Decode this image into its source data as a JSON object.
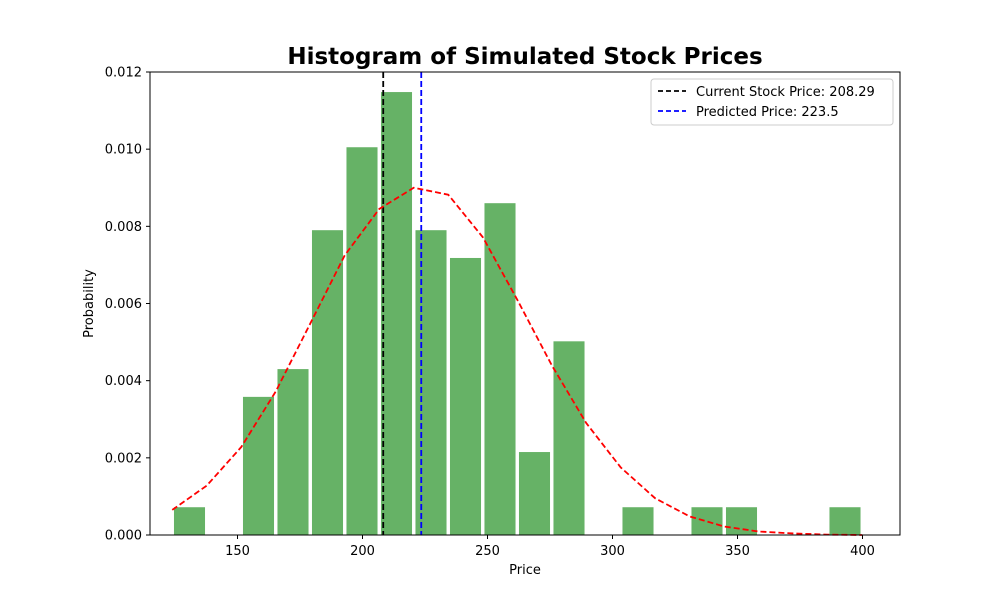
{
  "chart_data": {
    "type": "bar",
    "title": "Histogram of Simulated Stock Prices",
    "xlabel": "Price",
    "ylabel": "Probability",
    "xlim": [
      115,
      415
    ],
    "ylim": [
      0,
      0.012
    ],
    "xticks": [
      150,
      200,
      250,
      300,
      350,
      400
    ],
    "yticks": [
      0.0,
      0.002,
      0.004,
      0.006,
      0.008,
      0.01,
      0.012
    ],
    "xtick_labels": [
      "150",
      "200",
      "250",
      "300",
      "350",
      "400"
    ],
    "ytick_labels": [
      "0.000",
      "0.002",
      "0.004",
      "0.006",
      "0.008",
      "0.010",
      "0.012"
    ],
    "grid": false,
    "legend_position": "top-right",
    "bars": [
      {
        "x0": 123.9,
        "x1": 137.7,
        "value": 0.00072
      },
      {
        "x0": 137.7,
        "x1": 151.5,
        "value": 0.0
      },
      {
        "x0": 151.5,
        "x1": 165.3,
        "value": 0.00358
      },
      {
        "x0": 165.3,
        "x1": 179.1,
        "value": 0.0043
      },
      {
        "x0": 179.1,
        "x1": 192.9,
        "value": 0.0079
      },
      {
        "x0": 192.9,
        "x1": 206.7,
        "value": 0.01005
      },
      {
        "x0": 206.7,
        "x1": 220.5,
        "value": 0.01148
      },
      {
        "x0": 220.5,
        "x1": 234.3,
        "value": 0.0079
      },
      {
        "x0": 234.3,
        "x1": 248.1,
        "value": 0.00718
      },
      {
        "x0": 248.1,
        "x1": 261.9,
        "value": 0.0086
      },
      {
        "x0": 261.9,
        "x1": 275.7,
        "value": 0.00215
      },
      {
        "x0": 275.7,
        "x1": 289.5,
        "value": 0.00502
      },
      {
        "x0": 289.5,
        "x1": 303.3,
        "value": 0.0
      },
      {
        "x0": 303.3,
        "x1": 317.1,
        "value": 0.00072
      },
      {
        "x0": 317.1,
        "x1": 330.9,
        "value": 0.0
      },
      {
        "x0": 330.9,
        "x1": 344.7,
        "value": 0.00072
      },
      {
        "x0": 344.7,
        "x1": 358.5,
        "value": 0.00072
      },
      {
        "x0": 358.5,
        "x1": 372.3,
        "value": 0.0
      },
      {
        "x0": 372.3,
        "x1": 386.1,
        "value": 0.0
      },
      {
        "x0": 386.1,
        "x1": 399.9,
        "value": 0.00072
      }
    ],
    "bar_color": "#66b266",
    "density_curve": {
      "color": "#ff0000",
      "x": [
        123.9,
        137.7,
        151.5,
        165.3,
        179.1,
        192.9,
        206.7,
        220.5,
        234.3,
        248.1,
        261.9,
        275.7,
        289.5,
        303.3,
        317.1,
        330.9,
        344.7,
        358.5,
        372.3,
        386.1,
        399.9
      ],
      "y": [
        0.00065,
        0.00128,
        0.00228,
        0.00372,
        0.00548,
        0.00725,
        0.00845,
        0.009,
        0.00882,
        0.00772,
        0.0061,
        0.0044,
        0.0029,
        0.00175,
        0.00095,
        0.00048,
        0.00022,
        9e-05,
        4e-05,
        1e-05,
        0.0
      ]
    },
    "series": [
      {
        "name": "Current Stock Price: 208.29",
        "type": "vline",
        "x": 208.29,
        "color": "#000000"
      },
      {
        "name": "Predicted Price: 223.5",
        "type": "vline",
        "x": 223.5,
        "color": "#0000ff"
      }
    ]
  }
}
